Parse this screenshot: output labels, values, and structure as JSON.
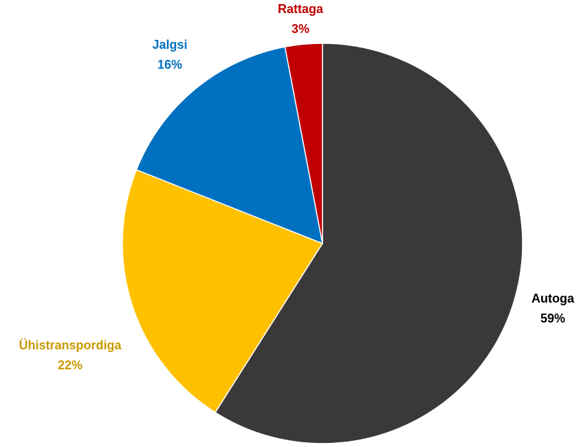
{
  "chart_data": {
    "type": "pie",
    "title": "",
    "start_angle_deg": 0,
    "direction": "clockwise",
    "slices": [
      {
        "label": "Autoga",
        "value": 59,
        "value_label": "59%",
        "color": "#3a3838",
        "label_color": "#000000"
      },
      {
        "label": "Ühistranspordiga",
        "value": 22,
        "value_label": "22%",
        "color": "#ffc000",
        "label_color": "#c99a00"
      },
      {
        "label": "Jalgsi",
        "value": 16,
        "value_label": "16%",
        "color": "#0070c0",
        "label_color": "#0070c0"
      },
      {
        "label": "Rattaga",
        "value": 3,
        "value_label": "3%",
        "color": "#c00000",
        "label_color": "#c00000"
      }
    ],
    "legend": "none",
    "label_position": "outside"
  }
}
